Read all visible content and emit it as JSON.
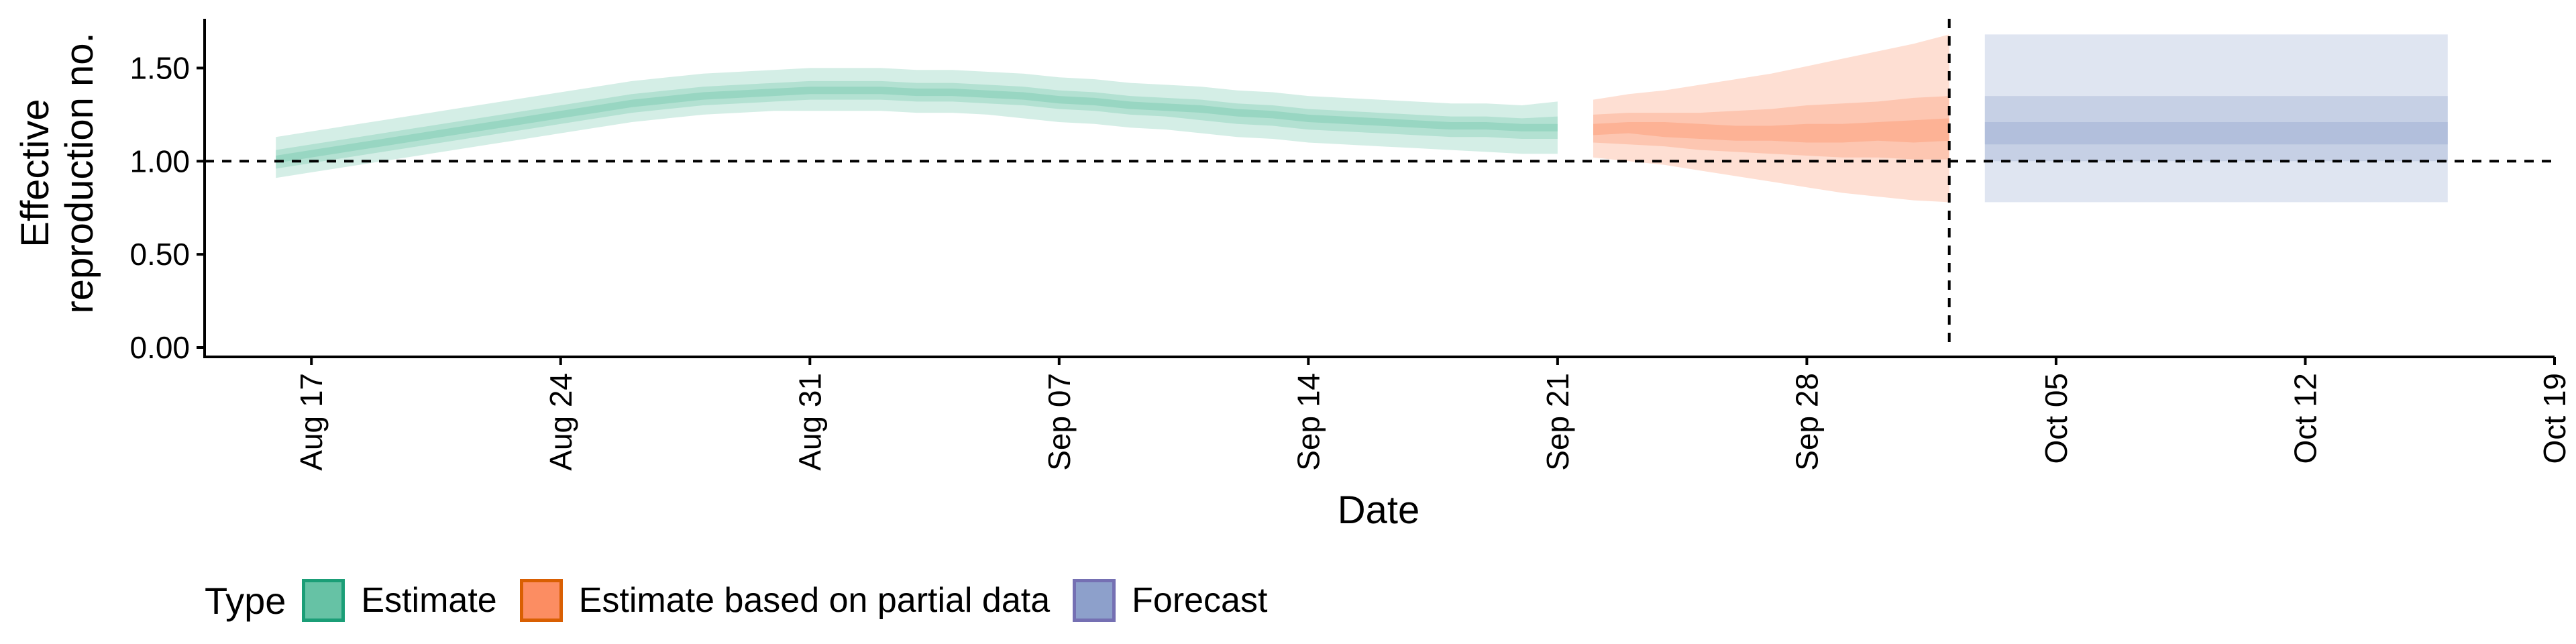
{
  "chart_data": {
    "type": "area",
    "ylabel": [
      "Effective",
      "reproduction no."
    ],
    "xlabel": "Date",
    "ylim": [
      0,
      1.75
    ],
    "yticks": [
      0,
      0.5,
      1,
      1.5
    ],
    "ytick_labels": [
      "0.00",
      "0.50",
      "1.00",
      "1.50"
    ],
    "x_start": "2020-08-14",
    "x_end": "2020-10-19",
    "xticks": [
      "2020-08-17",
      "2020-08-24",
      "2020-08-31",
      "2020-09-07",
      "2020-09-14",
      "2020-09-21",
      "2020-09-28",
      "2020-10-05",
      "2020-10-12",
      "2020-10-19"
    ],
    "xtick_labels": [
      "Aug 17",
      "Aug 24",
      "Aug 31",
      "Sep 07",
      "Sep 14",
      "Sep 21",
      "Sep 28",
      "Oct 05",
      "Oct 12",
      "Oct 19"
    ],
    "reference_hline": 1.0,
    "reference_vline": "2020-10-02",
    "legend_title": "Type",
    "legend_position": "bottom-left",
    "grid": false,
    "series": [
      {
        "name": "Estimate",
        "fill": "#66c2a5",
        "border": "#1b9e77",
        "dates": [
          "2020-08-16",
          "2020-08-17",
          "2020-08-18",
          "2020-08-19",
          "2020-08-20",
          "2020-08-21",
          "2020-08-22",
          "2020-08-23",
          "2020-08-24",
          "2020-08-25",
          "2020-08-26",
          "2020-08-27",
          "2020-08-28",
          "2020-08-29",
          "2020-08-30",
          "2020-08-31",
          "2020-09-01",
          "2020-09-02",
          "2020-09-03",
          "2020-09-04",
          "2020-09-05",
          "2020-09-06",
          "2020-09-07",
          "2020-09-08",
          "2020-09-09",
          "2020-09-10",
          "2020-09-11",
          "2020-09-12",
          "2020-09-13",
          "2020-09-14",
          "2020-09-15",
          "2020-09-16",
          "2020-09-17",
          "2020-09-18",
          "2020-09-19",
          "2020-09-20",
          "2020-09-21"
        ],
        "median": [
          1.01,
          1.04,
          1.07,
          1.1,
          1.13,
          1.16,
          1.19,
          1.22,
          1.25,
          1.28,
          1.31,
          1.33,
          1.35,
          1.36,
          1.37,
          1.38,
          1.38,
          1.38,
          1.37,
          1.37,
          1.36,
          1.35,
          1.33,
          1.32,
          1.3,
          1.29,
          1.28,
          1.26,
          1.25,
          1.23,
          1.22,
          1.21,
          1.2,
          1.19,
          1.19,
          1.18,
          1.18
        ],
        "lower_20": [
          0.99,
          1.02,
          1.05,
          1.08,
          1.11,
          1.14,
          1.17,
          1.2,
          1.23,
          1.26,
          1.29,
          1.31,
          1.33,
          1.34,
          1.35,
          1.36,
          1.36,
          1.36,
          1.35,
          1.35,
          1.34,
          1.33,
          1.31,
          1.3,
          1.28,
          1.27,
          1.26,
          1.24,
          1.23,
          1.21,
          1.2,
          1.19,
          1.18,
          1.17,
          1.17,
          1.16,
          1.16
        ],
        "upper_20": [
          1.03,
          1.06,
          1.09,
          1.12,
          1.15,
          1.18,
          1.21,
          1.24,
          1.27,
          1.3,
          1.33,
          1.35,
          1.37,
          1.38,
          1.39,
          1.4,
          1.4,
          1.4,
          1.39,
          1.39,
          1.38,
          1.37,
          1.35,
          1.34,
          1.32,
          1.31,
          1.3,
          1.28,
          1.27,
          1.25,
          1.24,
          1.23,
          1.22,
          1.21,
          1.21,
          1.2,
          1.2
        ],
        "lower_50": [
          0.96,
          0.99,
          1.02,
          1.05,
          1.08,
          1.11,
          1.14,
          1.17,
          1.2,
          1.23,
          1.26,
          1.28,
          1.3,
          1.31,
          1.32,
          1.33,
          1.33,
          1.33,
          1.32,
          1.32,
          1.31,
          1.3,
          1.28,
          1.27,
          1.25,
          1.24,
          1.22,
          1.2,
          1.19,
          1.17,
          1.16,
          1.15,
          1.14,
          1.13,
          1.13,
          1.12,
          1.12
        ],
        "upper_50": [
          1.06,
          1.09,
          1.12,
          1.15,
          1.18,
          1.21,
          1.24,
          1.27,
          1.3,
          1.33,
          1.36,
          1.38,
          1.4,
          1.41,
          1.42,
          1.43,
          1.43,
          1.43,
          1.42,
          1.42,
          1.41,
          1.4,
          1.38,
          1.37,
          1.35,
          1.34,
          1.33,
          1.31,
          1.3,
          1.28,
          1.27,
          1.26,
          1.25,
          1.24,
          1.24,
          1.23,
          1.24
        ],
        "lower_90": [
          0.91,
          0.94,
          0.97,
          1.0,
          1.03,
          1.06,
          1.09,
          1.12,
          1.15,
          1.18,
          1.21,
          1.23,
          1.25,
          1.26,
          1.27,
          1.27,
          1.27,
          1.27,
          1.26,
          1.26,
          1.25,
          1.23,
          1.21,
          1.2,
          1.18,
          1.17,
          1.15,
          1.13,
          1.12,
          1.1,
          1.09,
          1.08,
          1.07,
          1.06,
          1.05,
          1.04,
          1.04
        ],
        "upper_90": [
          1.13,
          1.16,
          1.19,
          1.22,
          1.25,
          1.28,
          1.31,
          1.34,
          1.37,
          1.4,
          1.43,
          1.45,
          1.47,
          1.48,
          1.49,
          1.5,
          1.5,
          1.5,
          1.49,
          1.49,
          1.48,
          1.47,
          1.45,
          1.44,
          1.42,
          1.41,
          1.4,
          1.38,
          1.37,
          1.35,
          1.34,
          1.33,
          1.32,
          1.31,
          1.31,
          1.3,
          1.32
        ]
      },
      {
        "name": "Estimate based on partial data",
        "fill": "#fc8d62",
        "border": "#d95f02",
        "dates": [
          "2020-09-22",
          "2020-09-23",
          "2020-09-24",
          "2020-09-25",
          "2020-09-26",
          "2020-09-27",
          "2020-09-28",
          "2020-09-29",
          "2020-09-30",
          "2020-10-01",
          "2020-10-02"
        ],
        "median": [
          1.17,
          1.18,
          1.17,
          1.16,
          1.15,
          1.15,
          1.15,
          1.15,
          1.16,
          1.16,
          1.17
        ],
        "lower_20": [
          1.14,
          1.15,
          1.13,
          1.12,
          1.11,
          1.11,
          1.1,
          1.1,
          1.11,
          1.1,
          1.11
        ],
        "upper_20": [
          1.2,
          1.21,
          1.21,
          1.2,
          1.19,
          1.19,
          1.2,
          1.2,
          1.21,
          1.22,
          1.23
        ],
        "lower_50": [
          1.1,
          1.09,
          1.08,
          1.06,
          1.05,
          1.04,
          1.03,
          1.02,
          1.02,
          1.01,
          1.01
        ],
        "upper_50": [
          1.25,
          1.26,
          1.26,
          1.26,
          1.27,
          1.28,
          1.3,
          1.31,
          1.32,
          1.34,
          1.35
        ],
        "lower_90": [
          1.02,
          1.0,
          0.98,
          0.95,
          0.92,
          0.89,
          0.86,
          0.83,
          0.81,
          0.79,
          0.78
        ],
        "upper_90": [
          1.33,
          1.36,
          1.38,
          1.41,
          1.44,
          1.47,
          1.51,
          1.55,
          1.59,
          1.63,
          1.68
        ]
      },
      {
        "name": "Forecast",
        "fill": "#8da0cb",
        "border": "#7570b3",
        "dates": [
          "2020-10-03",
          "2020-10-16"
        ],
        "median": [
          1.15,
          1.15
        ],
        "lower_20": [
          1.09,
          1.09
        ],
        "upper_20": [
          1.21,
          1.21
        ],
        "lower_50": [
          1.0,
          1.0
        ],
        "upper_50": [
          1.35,
          1.35
        ],
        "lower_90": [
          0.78,
          0.78
        ],
        "upper_90": [
          1.68,
          1.68
        ]
      }
    ]
  }
}
